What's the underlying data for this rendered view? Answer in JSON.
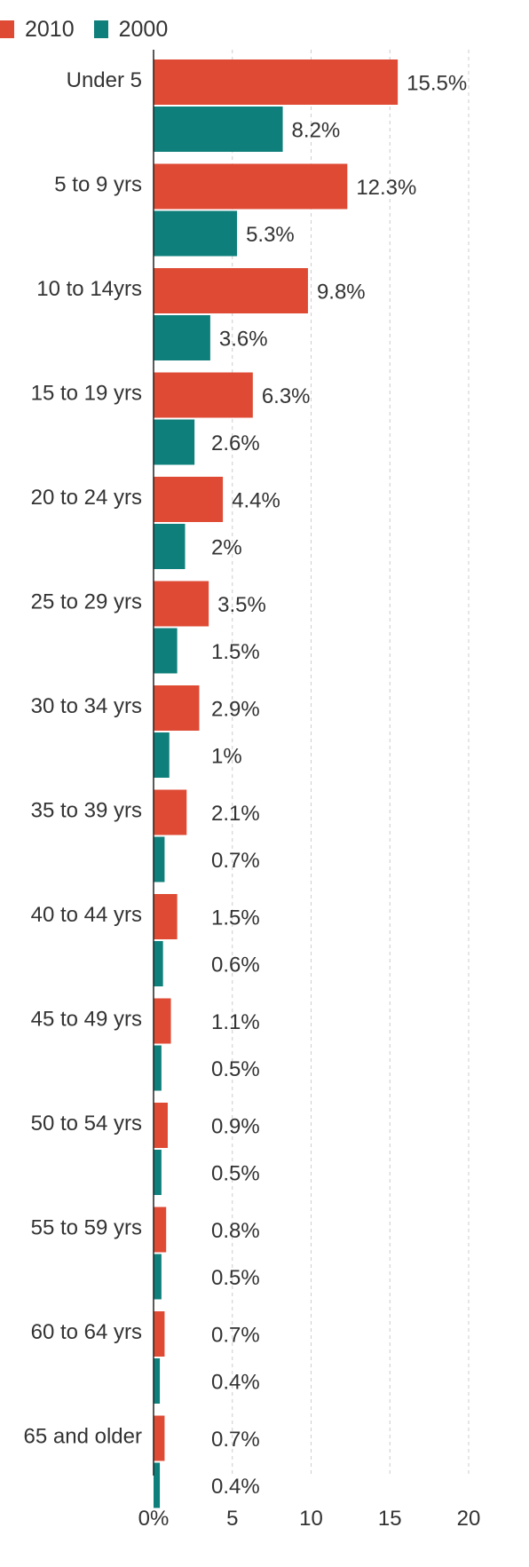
{
  "chart_data": {
    "type": "bar",
    "orientation": "horizontal",
    "categories": [
      "Under 5",
      "5 to 9 yrs",
      "10 to 14yrs",
      "15 to 19 yrs",
      "20 to 24 yrs",
      "25 to 29 yrs",
      "30 to 34 yrs",
      "35 to 39 yrs",
      "40 to 44 yrs",
      "45 to 49 yrs",
      "50 to 54 yrs",
      "55 to 59 yrs",
      "60 to 64 yrs",
      "65 and older"
    ],
    "series": [
      {
        "name": "2010",
        "color": "#de4a33",
        "values": [
          15.5,
          12.3,
          9.8,
          6.3,
          4.4,
          3.5,
          2.9,
          2.1,
          1.5,
          1.1,
          0.9,
          0.8,
          0.7,
          0.7
        ],
        "labels": [
          "15.5%",
          "12.3%",
          "9.8%",
          "6.3%",
          "4.4%",
          "3.5%",
          "2.9%",
          "2.1%",
          "1.5%",
          "1.1%",
          "0.9%",
          "0.8%",
          "0.7%",
          "0.7%"
        ]
      },
      {
        "name": "2000",
        "color": "#0f7f7b",
        "values": [
          8.2,
          5.3,
          3.6,
          2.6,
          2,
          1.5,
          1,
          0.7,
          0.6,
          0.5,
          0.5,
          0.5,
          0.4,
          0.4
        ],
        "labels": [
          "8.2%",
          "5.3%",
          "3.6%",
          "2.6%",
          "2%",
          "1.5%",
          "1%",
          "0.7%",
          "0.6%",
          "0.5%",
          "0.5%",
          "0.5%",
          "0.4%",
          "0.4%"
        ]
      }
    ],
    "xlim": [
      0,
      20
    ],
    "x_ticks": [
      0,
      5,
      10,
      15,
      20
    ],
    "x_tick_labels": [
      "0%",
      "5",
      "10",
      "15",
      "20"
    ],
    "grid": "vertical dashed",
    "legend": "top-left",
    "title": "",
    "xlabel": "",
    "ylabel": ""
  }
}
